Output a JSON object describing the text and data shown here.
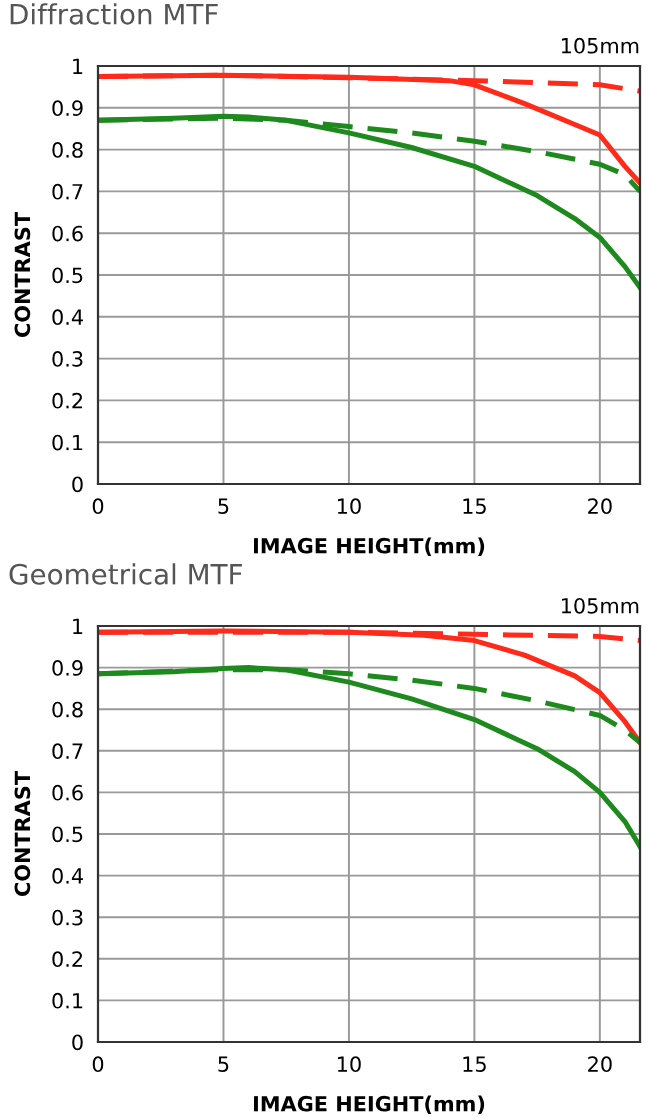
{
  "chart_data": [
    {
      "type": "line",
      "title": "Diffraction MTF",
      "annotations": [
        "105mm"
      ],
      "xlabel": "IMAGE HEIGHT(mm)",
      "ylabel": "CONTRAST",
      "xlim": [
        0,
        21.6
      ],
      "ylim": [
        0,
        1
      ],
      "xticks": [
        0,
        5,
        10,
        15,
        20
      ],
      "yticks": [
        0,
        0.1,
        0.2,
        0.3,
        0.4,
        0.5,
        0.6,
        0.7,
        0.8,
        0.9,
        1
      ],
      "grid": true,
      "series": [
        {
          "color": "#ff2a1a",
          "line_style": "dashed",
          "x": [
            0,
            5,
            10,
            15,
            20,
            21.6
          ],
          "values": [
            0.975,
            0.978,
            0.972,
            0.965,
            0.955,
            0.94
          ]
        },
        {
          "color": "#ff2a1a",
          "line_style": "solid",
          "x": [
            0,
            5,
            10,
            14,
            15,
            17,
            19,
            20,
            21,
            21.6
          ],
          "values": [
            0.975,
            0.978,
            0.973,
            0.965,
            0.955,
            0.91,
            0.86,
            0.835,
            0.76,
            0.72
          ]
        },
        {
          "color": "#1e8a1e",
          "line_style": "dashed",
          "x": [
            0,
            5,
            7.5,
            10,
            12.5,
            15,
            17.5,
            20,
            21,
            21.6
          ],
          "values": [
            0.87,
            0.875,
            0.87,
            0.855,
            0.84,
            0.82,
            0.795,
            0.765,
            0.74,
            0.7
          ]
        },
        {
          "color": "#1e8a1e",
          "line_style": "solid",
          "x": [
            0,
            3,
            5,
            6,
            7.5,
            10,
            12.5,
            15,
            17.5,
            19,
            20,
            21,
            21.6
          ],
          "values": [
            0.87,
            0.875,
            0.88,
            0.878,
            0.87,
            0.84,
            0.805,
            0.76,
            0.69,
            0.635,
            0.59,
            0.52,
            0.47
          ]
        }
      ]
    },
    {
      "type": "line",
      "title": "Geometrical MTF",
      "annotations": [
        "105mm"
      ],
      "xlabel": "IMAGE HEIGHT(mm)",
      "ylabel": "CONTRAST",
      "xlim": [
        0,
        21.6
      ],
      "ylim": [
        0,
        1
      ],
      "xticks": [
        0,
        5,
        10,
        15,
        20
      ],
      "yticks": [
        0,
        0.1,
        0.2,
        0.3,
        0.4,
        0.5,
        0.6,
        0.7,
        0.8,
        0.9,
        1
      ],
      "grid": true,
      "series": [
        {
          "color": "#ff2a1a",
          "line_style": "dashed",
          "x": [
            0,
            10,
            15,
            20,
            21.6
          ],
          "values": [
            0.985,
            0.985,
            0.98,
            0.975,
            0.965
          ]
        },
        {
          "color": "#ff2a1a",
          "line_style": "solid",
          "x": [
            0,
            5,
            10,
            13,
            15,
            17,
            19,
            20,
            21,
            21.6
          ],
          "values": [
            0.985,
            0.988,
            0.985,
            0.978,
            0.965,
            0.93,
            0.88,
            0.84,
            0.77,
            0.72
          ]
        },
        {
          "color": "#1e8a1e",
          "line_style": "dashed",
          "x": [
            0,
            5,
            7.5,
            10,
            12.5,
            15,
            17.5,
            20,
            21,
            21.6
          ],
          "values": [
            0.885,
            0.895,
            0.895,
            0.885,
            0.87,
            0.85,
            0.82,
            0.785,
            0.75,
            0.72
          ]
        },
        {
          "color": "#1e8a1e",
          "line_style": "solid",
          "x": [
            0,
            3,
            5,
            6,
            7.5,
            10,
            12.5,
            15,
            17.5,
            19,
            20,
            21,
            21.6
          ],
          "values": [
            0.885,
            0.89,
            0.898,
            0.9,
            0.895,
            0.865,
            0.825,
            0.775,
            0.705,
            0.65,
            0.6,
            0.53,
            0.47
          ]
        }
      ]
    }
  ]
}
